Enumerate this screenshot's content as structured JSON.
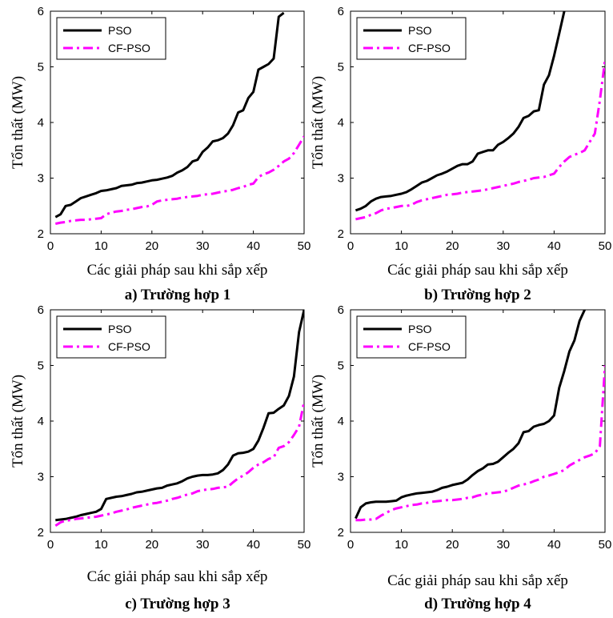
{
  "chart_data": [
    {
      "type": "line",
      "caption": "a) Trường hợp 1",
      "xlabel": "Các giải pháp sau khi sắp xếp",
      "ylabel": "Tổn thất (MW)",
      "xlim": [
        0,
        50
      ],
      "ylim": [
        2,
        6
      ],
      "xticks": [
        0,
        10,
        20,
        30,
        40,
        50
      ],
      "yticks": [
        2,
        3,
        4,
        5,
        6
      ],
      "legend_position": "top-left",
      "series": [
        {
          "name": "PSO",
          "color": "#000000",
          "style": "solid",
          "x": [
            1,
            2,
            3,
            4,
            5,
            6,
            7,
            8,
            9,
            10,
            11,
            12,
            13,
            14,
            15,
            16,
            17,
            18,
            19,
            20,
            21,
            22,
            23,
            24,
            25,
            26,
            27,
            28,
            29,
            30,
            31,
            32,
            33,
            34,
            35,
            36,
            37,
            38,
            39,
            40,
            41,
            42,
            43,
            44,
            45,
            46
          ],
          "y": [
            2.3,
            2.35,
            2.5,
            2.52,
            2.58,
            2.64,
            2.67,
            2.7,
            2.73,
            2.77,
            2.78,
            2.8,
            2.82,
            2.86,
            2.87,
            2.88,
            2.91,
            2.92,
            2.94,
            2.96,
            2.97,
            2.99,
            3.01,
            3.04,
            3.1,
            3.14,
            3.2,
            3.3,
            3.33,
            3.47,
            3.55,
            3.66,
            3.68,
            3.72,
            3.8,
            3.95,
            4.18,
            4.22,
            4.44,
            4.55,
            4.95,
            5.0,
            5.05,
            5.15,
            5.9,
            5.97
          ]
        },
        {
          "name": "CF-PSO",
          "color": "#ff00ff",
          "style": "dashdot",
          "x": [
            1,
            2,
            3,
            4,
            5,
            6,
            7,
            8,
            9,
            10,
            11,
            12,
            13,
            14,
            15,
            16,
            17,
            18,
            19,
            20,
            21,
            22,
            23,
            24,
            25,
            26,
            27,
            28,
            29,
            30,
            31,
            32,
            33,
            34,
            35,
            36,
            37,
            38,
            39,
            40,
            41,
            42,
            43,
            44,
            45,
            46,
            47,
            48,
            49,
            50
          ],
          "y": [
            2.18,
            2.2,
            2.21,
            2.23,
            2.24,
            2.25,
            2.25,
            2.26,
            2.27,
            2.28,
            2.35,
            2.38,
            2.4,
            2.41,
            2.43,
            2.44,
            2.46,
            2.48,
            2.49,
            2.52,
            2.58,
            2.6,
            2.61,
            2.62,
            2.63,
            2.65,
            2.66,
            2.67,
            2.68,
            2.7,
            2.71,
            2.72,
            2.74,
            2.76,
            2.77,
            2.79,
            2.82,
            2.84,
            2.88,
            2.9,
            3.02,
            3.07,
            3.1,
            3.15,
            3.22,
            3.3,
            3.35,
            3.45,
            3.6,
            3.75
          ]
        }
      ]
    },
    {
      "type": "line",
      "caption": "b) Trường hợp 2",
      "xlabel": "Các giải pháp sau khi sắp xếp",
      "ylabel": "Tổn thất (MW)",
      "xlim": [
        0,
        50
      ],
      "ylim": [
        2,
        6
      ],
      "xticks": [
        0,
        10,
        20,
        30,
        40,
        50
      ],
      "yticks": [
        2,
        3,
        4,
        5,
        6
      ],
      "legend_position": "top-left",
      "series": [
        {
          "name": "PSO",
          "color": "#000000",
          "style": "solid",
          "x": [
            1,
            2,
            3,
            4,
            5,
            6,
            7,
            8,
            9,
            10,
            11,
            12,
            13,
            14,
            15,
            16,
            17,
            18,
            19,
            20,
            21,
            22,
            23,
            24,
            25,
            26,
            27,
            28,
            29,
            30,
            31,
            32,
            33,
            34,
            35,
            36,
            37,
            38,
            39,
            40,
            41,
            42
          ],
          "y": [
            2.42,
            2.45,
            2.5,
            2.58,
            2.63,
            2.66,
            2.67,
            2.68,
            2.7,
            2.72,
            2.75,
            2.8,
            2.86,
            2.92,
            2.95,
            3.0,
            3.05,
            3.08,
            3.12,
            3.17,
            3.22,
            3.25,
            3.25,
            3.3,
            3.44,
            3.47,
            3.5,
            3.5,
            3.6,
            3.65,
            3.72,
            3.8,
            3.92,
            4.08,
            4.12,
            4.2,
            4.22,
            4.68,
            4.85,
            5.2,
            5.6,
            6.0
          ]
        },
        {
          "name": "CF-PSO",
          "color": "#ff00ff",
          "style": "dashdot",
          "x": [
            1,
            2,
            3,
            4,
            5,
            6,
            7,
            8,
            9,
            10,
            11,
            12,
            13,
            14,
            15,
            16,
            17,
            18,
            19,
            20,
            21,
            22,
            23,
            24,
            25,
            26,
            27,
            28,
            29,
            30,
            31,
            32,
            33,
            34,
            35,
            36,
            37,
            38,
            39,
            40,
            41,
            42,
            43,
            44,
            45,
            46,
            47,
            48,
            49,
            50
          ],
          "y": [
            2.26,
            2.28,
            2.3,
            2.34,
            2.37,
            2.42,
            2.45,
            2.46,
            2.48,
            2.5,
            2.5,
            2.52,
            2.57,
            2.6,
            2.62,
            2.64,
            2.66,
            2.68,
            2.7,
            2.71,
            2.72,
            2.74,
            2.75,
            2.76,
            2.77,
            2.78,
            2.8,
            2.82,
            2.84,
            2.86,
            2.88,
            2.9,
            2.93,
            2.95,
            2.97,
            3.0,
            3.01,
            3.02,
            3.05,
            3.08,
            3.2,
            3.3,
            3.38,
            3.42,
            3.45,
            3.5,
            3.65,
            3.8,
            4.4,
            5.12
          ]
        }
      ]
    },
    {
      "type": "line",
      "caption": "c) Trường hợp 3",
      "xlabel": "Các giải pháp sau khi sắp xếp",
      "ylabel": "Tổn thất (MW)",
      "xlim": [
        0,
        50
      ],
      "ylim": [
        2,
        6
      ],
      "xticks": [
        0,
        10,
        20,
        30,
        40,
        50
      ],
      "yticks": [
        2,
        3,
        4,
        5,
        6
      ],
      "legend_position": "top-left",
      "series": [
        {
          "name": "PSO",
          "color": "#000000",
          "style": "solid",
          "x": [
            1,
            2,
            3,
            4,
            5,
            6,
            7,
            8,
            9,
            10,
            11,
            12,
            13,
            14,
            15,
            16,
            17,
            18,
            19,
            20,
            21,
            22,
            23,
            24,
            25,
            26,
            27,
            28,
            29,
            30,
            31,
            32,
            33,
            34,
            35,
            36,
            37,
            38,
            39,
            40,
            41,
            42,
            43,
            44,
            45,
            46,
            47,
            48,
            49,
            50
          ],
          "y": [
            2.22,
            2.23,
            2.24,
            2.26,
            2.28,
            2.31,
            2.33,
            2.35,
            2.37,
            2.42,
            2.6,
            2.62,
            2.64,
            2.65,
            2.67,
            2.69,
            2.72,
            2.73,
            2.75,
            2.77,
            2.79,
            2.8,
            2.84,
            2.86,
            2.88,
            2.92,
            2.97,
            3.0,
            3.02,
            3.03,
            3.03,
            3.04,
            3.06,
            3.12,
            3.22,
            3.38,
            3.42,
            3.43,
            3.45,
            3.5,
            3.65,
            3.88,
            4.14,
            4.15,
            4.22,
            4.28,
            4.45,
            4.8,
            5.6,
            6.0
          ]
        },
        {
          "name": "CF-PSO",
          "color": "#ff00ff",
          "style": "dashdot",
          "x": [
            1,
            2,
            3,
            4,
            5,
            6,
            7,
            8,
            9,
            10,
            11,
            12,
            13,
            14,
            15,
            16,
            17,
            18,
            19,
            20,
            21,
            22,
            23,
            24,
            25,
            26,
            27,
            28,
            29,
            30,
            31,
            32,
            33,
            34,
            35,
            36,
            37,
            38,
            39,
            40,
            41,
            42,
            43,
            44,
            45,
            46,
            47,
            48,
            49,
            50
          ],
          "y": [
            2.12,
            2.18,
            2.21,
            2.22,
            2.24,
            2.25,
            2.26,
            2.27,
            2.28,
            2.3,
            2.32,
            2.34,
            2.37,
            2.39,
            2.41,
            2.44,
            2.46,
            2.48,
            2.5,
            2.52,
            2.53,
            2.55,
            2.57,
            2.6,
            2.62,
            2.65,
            2.68,
            2.7,
            2.74,
            2.76,
            2.77,
            2.78,
            2.8,
            2.81,
            2.82,
            2.9,
            2.97,
            3.02,
            3.08,
            3.16,
            3.22,
            3.26,
            3.32,
            3.35,
            3.52,
            3.55,
            3.62,
            3.75,
            3.9,
            4.35
          ]
        }
      ]
    },
    {
      "type": "line",
      "caption": "d) Trường hợp 4",
      "xlabel": "Các giải pháp sau khi sắp xếp",
      "ylabel": "Tổn thất (MW)",
      "xlim": [
        0,
        50
      ],
      "ylim": [
        2,
        6
      ],
      "xticks": [
        0,
        10,
        20,
        30,
        40,
        50
      ],
      "yticks": [
        2,
        3,
        4,
        5,
        6
      ],
      "legend_position": "top-left",
      "series": [
        {
          "name": "PSO",
          "color": "#000000",
          "style": "solid",
          "x": [
            1,
            2,
            3,
            4,
            5,
            6,
            7,
            8,
            9,
            10,
            11,
            12,
            13,
            14,
            15,
            16,
            17,
            18,
            19,
            20,
            21,
            22,
            23,
            24,
            25,
            26,
            27,
            28,
            29,
            30,
            31,
            32,
            33,
            34,
            35,
            36,
            37,
            38,
            39,
            40,
            41,
            42,
            43,
            44,
            45,
            46
          ],
          "y": [
            2.25,
            2.45,
            2.52,
            2.54,
            2.55,
            2.55,
            2.55,
            2.56,
            2.57,
            2.63,
            2.66,
            2.68,
            2.7,
            2.71,
            2.72,
            2.73,
            2.76,
            2.8,
            2.82,
            2.85,
            2.87,
            2.89,
            2.95,
            3.03,
            3.1,
            3.15,
            3.22,
            3.23,
            3.27,
            3.35,
            3.43,
            3.5,
            3.6,
            3.8,
            3.82,
            3.9,
            3.93,
            3.95,
            4.0,
            4.1,
            4.6,
            4.9,
            5.25,
            5.45,
            5.8,
            6.0
          ]
        },
        {
          "name": "CF-PSO",
          "color": "#ff00ff",
          "style": "dashdot",
          "x": [
            1,
            2,
            3,
            4,
            5,
            6,
            7,
            8,
            9,
            10,
            11,
            12,
            13,
            14,
            15,
            16,
            17,
            18,
            19,
            20,
            21,
            22,
            23,
            24,
            25,
            26,
            27,
            28,
            29,
            30,
            31,
            32,
            33,
            34,
            35,
            36,
            37,
            38,
            39,
            40,
            41,
            42,
            43,
            44,
            45,
            46,
            47,
            48,
            49,
            50
          ],
          "y": [
            2.22,
            2.22,
            2.23,
            2.23,
            2.24,
            2.3,
            2.35,
            2.4,
            2.43,
            2.45,
            2.47,
            2.49,
            2.5,
            2.52,
            2.53,
            2.55,
            2.56,
            2.57,
            2.58,
            2.58,
            2.59,
            2.6,
            2.62,
            2.63,
            2.66,
            2.68,
            2.7,
            2.71,
            2.72,
            2.73,
            2.76,
            2.8,
            2.84,
            2.86,
            2.88,
            2.92,
            2.95,
            3.0,
            3.02,
            3.05,
            3.08,
            3.12,
            3.2,
            3.25,
            3.3,
            3.35,
            3.38,
            3.42,
            3.55,
            5.0
          ]
        }
      ]
    }
  ]
}
